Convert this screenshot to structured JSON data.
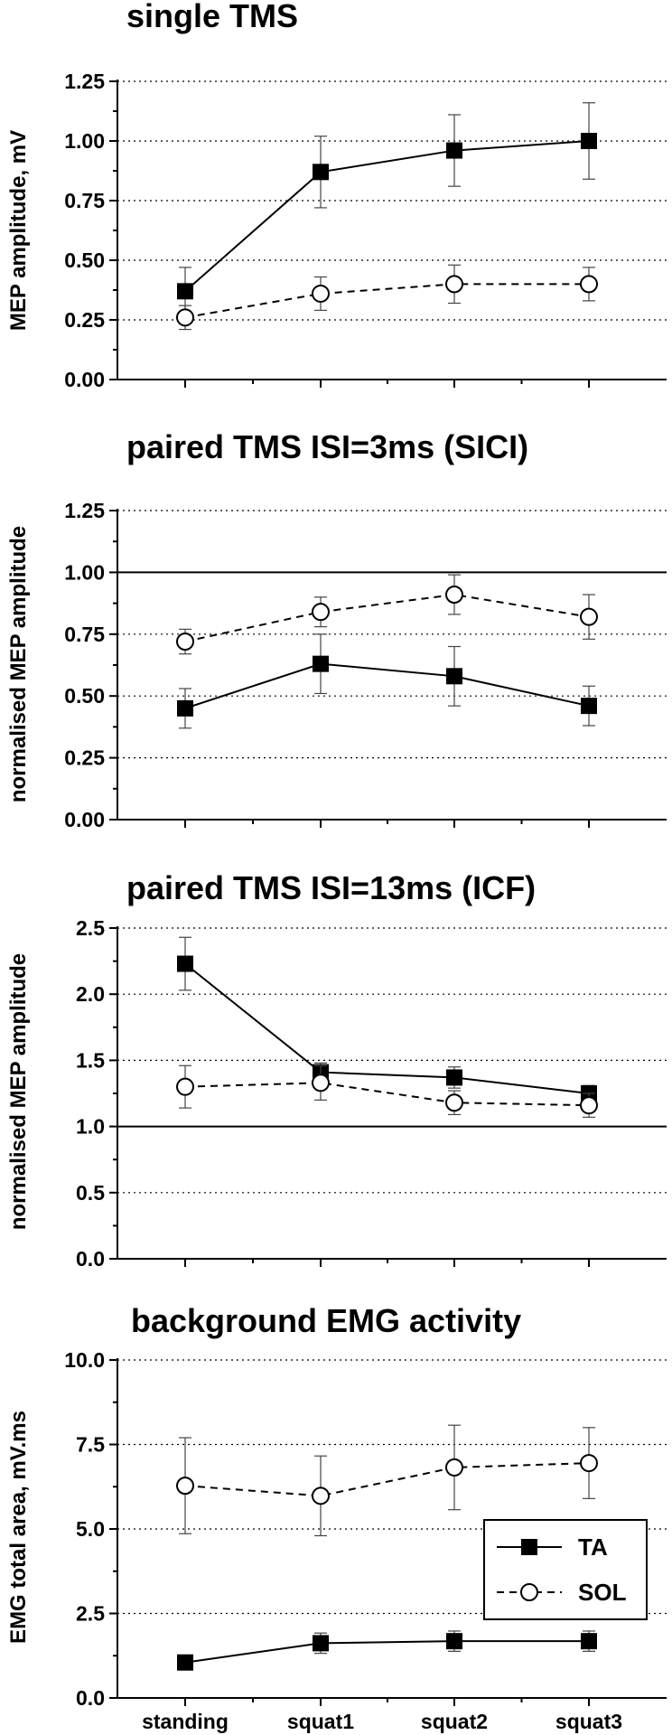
{
  "chart_data": [
    {
      "type": "line",
      "title": "single TMS",
      "ylabel": "MEP amplitude, mV",
      "categories": [
        "standing",
        "squat1",
        "squat2",
        "squat3"
      ],
      "ylim": [
        0,
        1.25
      ],
      "yticks": [
        "0.00",
        "0.25",
        "0.50",
        "0.75",
        "1.00",
        "1.25"
      ],
      "grid": true,
      "reference_line": null,
      "series": [
        {
          "name": "TA",
          "marker": "filled-square",
          "line": "solid",
          "values": [
            0.37,
            0.87,
            0.96,
            1.0
          ],
          "errors": [
            0.1,
            0.15,
            0.15,
            0.16
          ]
        },
        {
          "name": "SOL",
          "marker": "open-circle",
          "line": "dashed",
          "values": [
            0.26,
            0.36,
            0.4,
            0.4
          ],
          "errors": [
            0.05,
            0.07,
            0.08,
            0.07
          ]
        }
      ]
    },
    {
      "type": "line",
      "title": "paired TMS ISI=3ms (SICI)",
      "ylabel": "normalised MEP amplitude",
      "categories": [
        "standing",
        "squat1",
        "squat2",
        "squat3"
      ],
      "ylim": [
        0,
        1.25
      ],
      "yticks": [
        "0.00",
        "0.25",
        "0.50",
        "0.75",
        "1.00",
        "1.25"
      ],
      "grid": true,
      "reference_line": 1.0,
      "series": [
        {
          "name": "TA",
          "marker": "filled-square",
          "line": "solid",
          "values": [
            0.45,
            0.63,
            0.58,
            0.46
          ],
          "errors": [
            0.08,
            0.12,
            0.12,
            0.08
          ]
        },
        {
          "name": "SOL",
          "marker": "open-circle",
          "line": "dashed",
          "values": [
            0.72,
            0.84,
            0.91,
            0.82
          ],
          "errors": [
            0.05,
            0.06,
            0.08,
            0.09
          ]
        }
      ]
    },
    {
      "type": "line",
      "title": "paired TMS ISI=13ms (ICF)",
      "ylabel": "normalised MEP amplitude",
      "categories": [
        "standing",
        "squat1",
        "squat2",
        "squat3"
      ],
      "ylim": [
        0,
        2.5
      ],
      "yticks": [
        "0.0",
        "0.5",
        "1.0",
        "1.5",
        "2.0",
        "2.5"
      ],
      "grid": true,
      "reference_line": 1.0,
      "series": [
        {
          "name": "TA",
          "marker": "filled-square",
          "line": "solid",
          "values": [
            2.23,
            1.41,
            1.37,
            1.25
          ],
          "errors": [
            0.2,
            0.07,
            0.08,
            0.06
          ]
        },
        {
          "name": "SOL",
          "marker": "open-circle",
          "line": "dashed",
          "values": [
            1.3,
            1.33,
            1.18,
            1.16
          ],
          "errors": [
            0.16,
            0.13,
            0.09,
            0.09
          ]
        }
      ]
    },
    {
      "type": "line",
      "title": "background EMG activity",
      "ylabel": "EMG total area, mV.ms",
      "categories": [
        "standing",
        "squat1",
        "squat2",
        "squat3"
      ],
      "ylim": [
        0,
        10
      ],
      "yticks": [
        "0.0",
        "2.5",
        "5.0",
        "7.5",
        "10.0"
      ],
      "grid": true,
      "reference_line": null,
      "legend": "bottom-right",
      "series": [
        {
          "name": "TA",
          "marker": "filled-square",
          "line": "solid",
          "values": [
            1.05,
            1.62,
            1.68,
            1.68
          ],
          "errors": [
            0.0,
            0.3,
            0.3,
            0.3
          ]
        },
        {
          "name": "SOL",
          "marker": "open-circle",
          "line": "dashed",
          "values": [
            6.28,
            5.98,
            6.82,
            6.95
          ],
          "errors": [
            1.42,
            1.18,
            1.25,
            1.05
          ]
        }
      ]
    }
  ],
  "legend": {
    "ta_label": "TA",
    "sol_label": "SOL"
  }
}
